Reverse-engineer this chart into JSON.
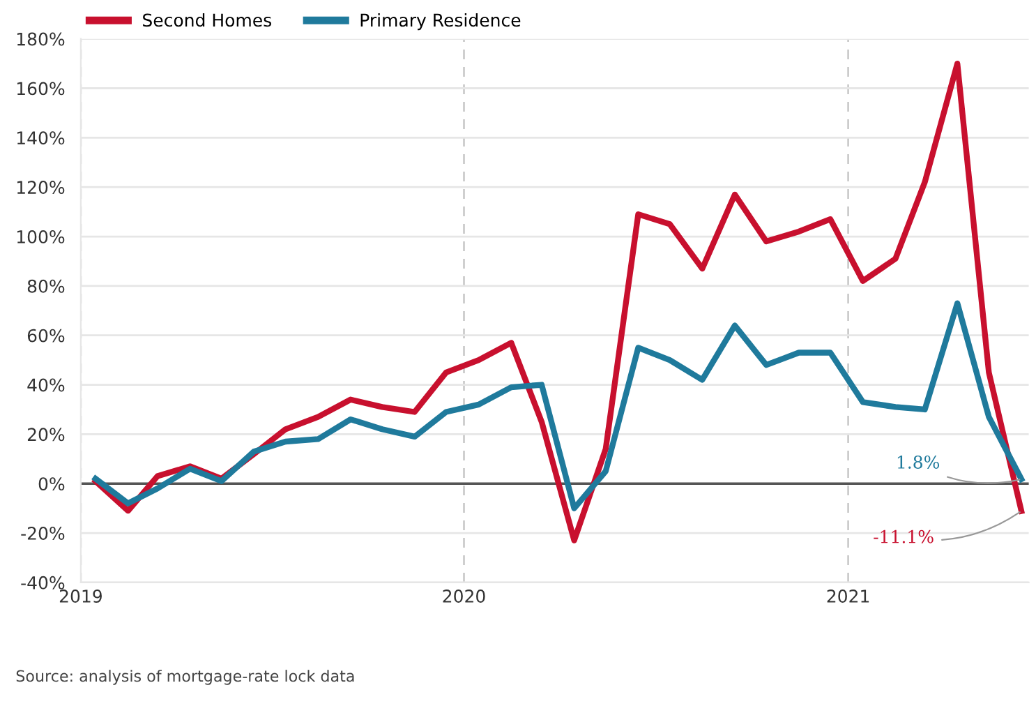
{
  "chart_data": {
    "type": "line",
    "x": [
      "2019-01-15",
      "2019-02-15",
      "2019-03-15",
      "2019-04-15",
      "2019-05-15",
      "2019-06-15",
      "2019-07-15",
      "2019-08-15",
      "2019-09-15",
      "2019-10-15",
      "2019-11-15",
      "2019-12-15",
      "2020-01-15",
      "2020-02-15",
      "2020-03-15",
      "2020-04-15",
      "2020-05-15",
      "2020-06-15",
      "2020-07-15",
      "2020-08-15",
      "2020-09-15",
      "2020-10-15",
      "2020-11-15",
      "2020-12-15",
      "2021-01-15",
      "2021-02-15",
      "2021-03-15",
      "2021-04-15",
      "2021-05-15",
      "2021-06-15"
    ],
    "series": [
      {
        "name": "Second Homes",
        "color": "#c8102e",
        "values": [
          1,
          -11,
          3,
          7,
          2,
          12,
          22,
          27,
          34,
          31,
          29,
          45,
          50,
          57,
          25,
          -23,
          14,
          109,
          105,
          87,
          117,
          98,
          102,
          107,
          82,
          91,
          122,
          170,
          45,
          -11.1
        ]
      },
      {
        "name": "Primary Residence",
        "color": "#1f7a9c",
        "values": [
          2,
          -8,
          -2,
          6,
          1,
          13,
          17,
          18,
          26,
          22,
          19,
          29,
          32,
          39,
          40,
          -10,
          5,
          55,
          50,
          42,
          64,
          48,
          53,
          53,
          33,
          31,
          30,
          73,
          27,
          1.8
        ]
      }
    ],
    "xlim": [
      "2019-01-01",
      "2021-06-22"
    ],
    "xticks": [
      {
        "value": "2019-01-01",
        "label": "2019"
      },
      {
        "value": "2020-01-01",
        "label": "2020"
      },
      {
        "value": "2021-01-01",
        "label": "2021"
      }
    ],
    "ylim": [
      -40,
      180
    ],
    "yticks": [
      {
        "value": -40,
        "label": "-40%"
      },
      {
        "value": -20,
        "label": "-20%"
      },
      {
        "value": 0,
        "label": "0%"
      },
      {
        "value": 20,
        "label": "20%"
      },
      {
        "value": 40,
        "label": "40%"
      },
      {
        "value": 60,
        "label": "60%"
      },
      {
        "value": 80,
        "label": "80%"
      },
      {
        "value": 100,
        "label": "100%"
      },
      {
        "value": 120,
        "label": "120%"
      },
      {
        "value": 140,
        "label": "140%"
      },
      {
        "value": 160,
        "label": "160%"
      },
      {
        "value": 180,
        "label": "180%"
      }
    ],
    "ref_lines": [
      {
        "axis": "y",
        "value": 0,
        "color": "#555555"
      }
    ],
    "grid": true,
    "legend": "top left",
    "marker": "none",
    "line_style": "solid",
    "annotations": [
      {
        "text": "1.8%",
        "x": "2021-06-15",
        "y": 1.8
      },
      {
        "text": "-11.1%",
        "x": "2021-06-15",
        "y": -11.1
      },
      "Source: analysis of mortgage-rate lock data"
    ]
  }
}
